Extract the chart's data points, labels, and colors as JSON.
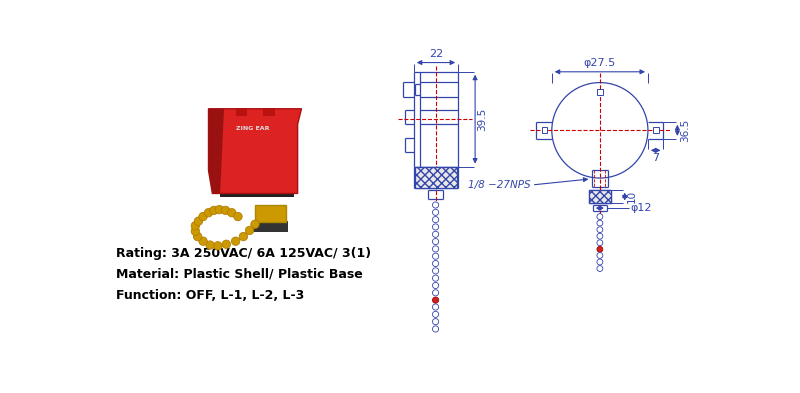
{
  "bg_color": "#ffffff",
  "line_color": "#3344aa",
  "red_color": "#cc0000",
  "dim_color": "#3344aa",
  "rating": "Rating: 3A 250VAC/ 6A 125VAC/ 3(1)",
  "material": "Material: Plastic Shell/ Plastic Base",
  "function": "Function: OFF, L-1, L-2, L-3",
  "dim_22": "22",
  "dim_39_5": "39.5",
  "dim_27_5": "φ27.5",
  "dim_36_5": "36.5",
  "dim_7": "7",
  "dim_10": "10",
  "dim_12": "φ12",
  "thread_label": "1/8 −27NPS"
}
